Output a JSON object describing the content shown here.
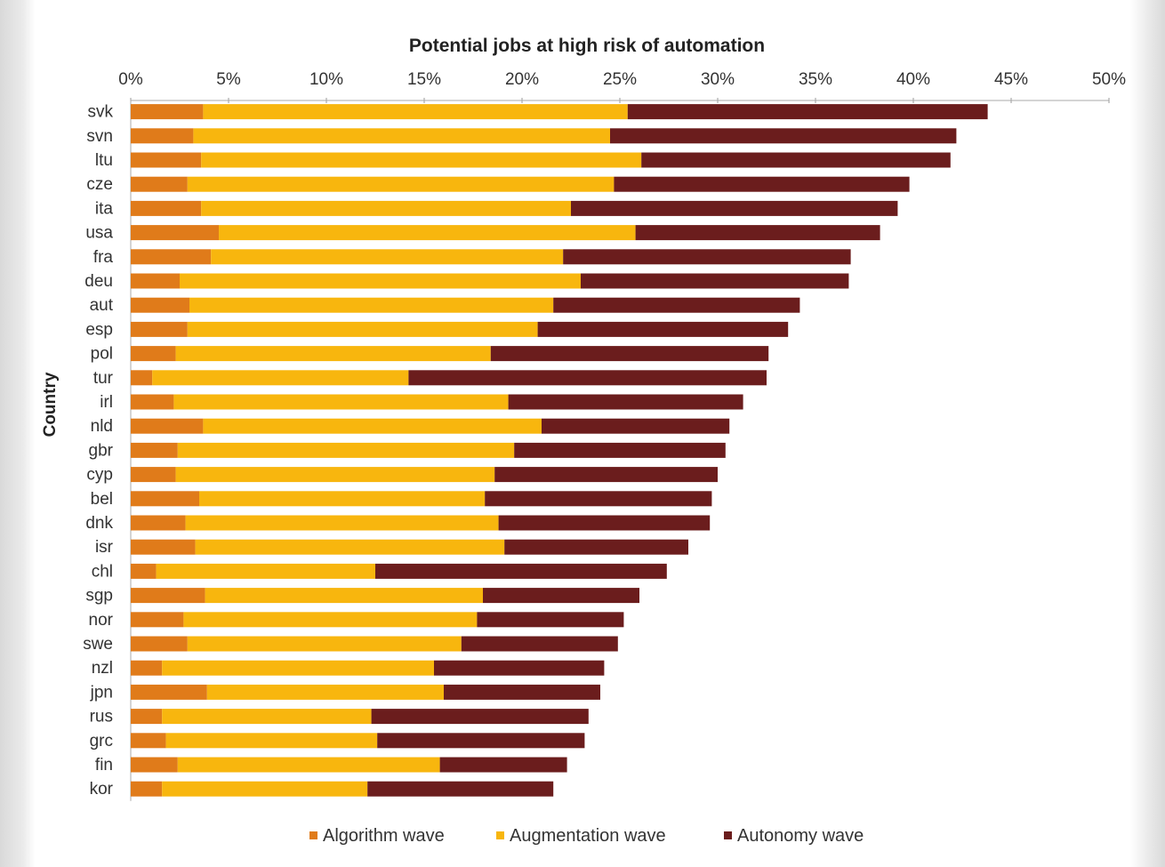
{
  "chart_data": {
    "type": "bar",
    "orientation": "horizontal",
    "stacked": true,
    "title": "Potential jobs at high risk of automation",
    "xlabel": "",
    "ylabel": "Country",
    "xlim": [
      0,
      50
    ],
    "x_ticks": [
      "0%",
      "5%",
      "10%",
      "15%",
      "20%",
      "25%",
      "30%",
      "35%",
      "40%",
      "45%",
      "50%"
    ],
    "grid": false,
    "legend_position": "bottom",
    "categories": [
      "svk",
      "svn",
      "ltu",
      "cze",
      "ita",
      "usa",
      "fra",
      "deu",
      "aut",
      "esp",
      "pol",
      "tur",
      "irl",
      "nld",
      "gbr",
      "cyp",
      "bel",
      "dnk",
      "isr",
      "chl",
      "sgp",
      "nor",
      "swe",
      "nzl",
      "jpn",
      "rus",
      "grc",
      "fin",
      "kor"
    ],
    "series": [
      {
        "name": "Algorithm wave",
        "color": "#e07b1a",
        "values": [
          3.7,
          3.2,
          3.6,
          2.9,
          3.6,
          4.5,
          4.1,
          2.5,
          3.0,
          2.9,
          2.3,
          1.1,
          2.2,
          3.7,
          2.4,
          2.3,
          3.5,
          2.8,
          3.3,
          1.3,
          3.8,
          2.7,
          2.9,
          1.6,
          3.9,
          1.6,
          1.8,
          2.4,
          1.6
        ]
      },
      {
        "name": "Augmentation wave",
        "color": "#f8b60e",
        "values": [
          21.7,
          21.3,
          22.5,
          21.8,
          18.9,
          21.3,
          18.0,
          20.5,
          18.6,
          17.9,
          16.1,
          13.1,
          17.1,
          17.3,
          17.2,
          16.3,
          14.6,
          16.0,
          15.8,
          11.2,
          14.2,
          15.0,
          14.0,
          13.9,
          12.1,
          10.7,
          10.8,
          13.4,
          10.5
        ]
      },
      {
        "name": "Autonomy wave",
        "color": "#6b1d1d",
        "values": [
          18.4,
          17.7,
          15.8,
          15.1,
          16.7,
          12.5,
          14.7,
          13.7,
          12.6,
          12.8,
          14.2,
          18.3,
          12.0,
          9.6,
          10.8,
          11.4,
          11.6,
          10.8,
          9.4,
          14.9,
          8.0,
          7.5,
          8.0,
          8.7,
          8.0,
          11.1,
          10.6,
          6.5,
          9.5
        ]
      }
    ]
  }
}
